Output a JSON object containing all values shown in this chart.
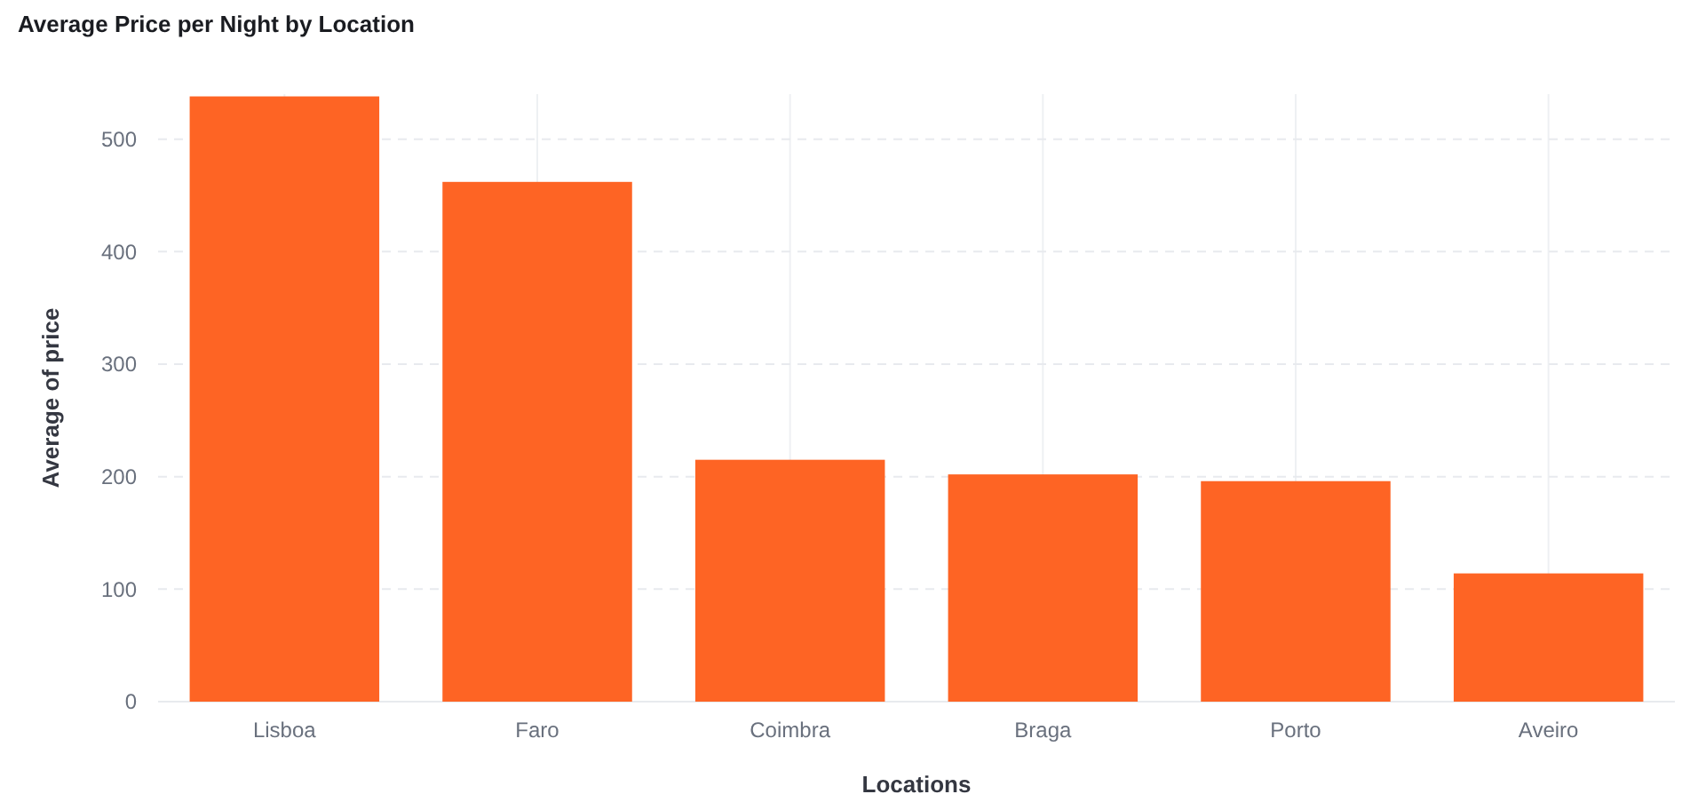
{
  "chart_data": {
    "type": "bar",
    "title": "Average Price per Night by Location",
    "xlabel": "Locations",
    "ylabel": "Average of price",
    "categories": [
      "Lisboa",
      "Faro",
      "Coimbra",
      "Braga",
      "Porto",
      "Aveiro"
    ],
    "values": [
      538,
      462,
      215,
      202,
      196,
      114
    ],
    "color": "#fe6424",
    "ylim": [
      0,
      540
    ],
    "yticks": [
      0,
      100,
      200,
      300,
      400,
      500
    ],
    "grid": true
  }
}
